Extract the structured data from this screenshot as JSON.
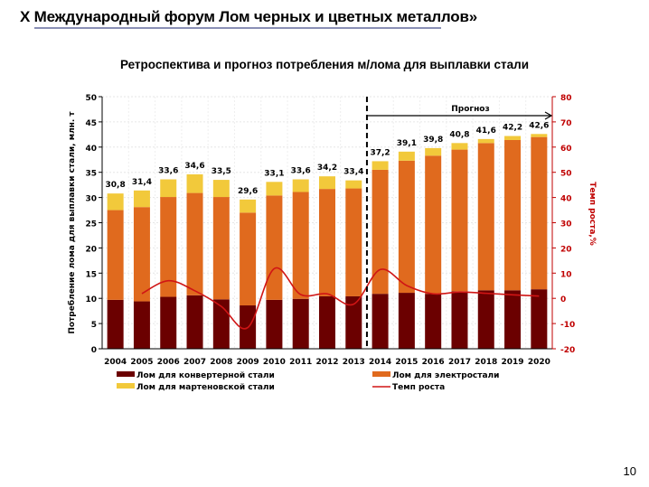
{
  "slide": {
    "title": "X Международный форум Лом черных и цветных металлов»",
    "page_number": "10"
  },
  "chart_data": {
    "type": "bar",
    "stacked": true,
    "title": "Ретроспектива и прогноз потребления м/лома для выплавки стали",
    "ylabel": "Потребление лома для выплавки стали, млн. т",
    "y2label": "Темп роста,%",
    "ylim": [
      0,
      50
    ],
    "y2lim": [
      -20,
      80
    ],
    "yticks": [
      "0",
      "5",
      "10",
      "15",
      "20",
      "25",
      "30",
      "35",
      "40",
      "45",
      "50"
    ],
    "y2ticks": [
      "-20",
      "-10",
      "0",
      "10",
      "20",
      "30",
      "40",
      "50",
      "60",
      "70",
      "80"
    ],
    "categories": [
      "2004",
      "2005",
      "2006",
      "2007",
      "2008",
      "2009",
      "2010",
      "2011",
      "2012",
      "2013",
      "2014",
      "2015",
      "2016",
      "2017",
      "2018",
      "2019",
      "2020"
    ],
    "forecast_label": "Прогноз",
    "forecast_start": "2014",
    "totals_labels": [
      "30,8",
      "31,4",
      "33,6",
      "34,6",
      "33,5",
      "29,6",
      "33,1",
      "33,6",
      "34,2",
      "33,4",
      "37,2",
      "39,1",
      "39,8",
      "40,8",
      "41,6",
      "42,2",
      "42,6"
    ],
    "series": [
      {
        "name": "Лом для конвертерной стали",
        "color": "#6b0000",
        "values": [
          9.7,
          9.4,
          10.3,
          10.6,
          9.8,
          8.6,
          9.7,
          9.9,
          10.4,
          10.4,
          10.9,
          11.1,
          10.9,
          11.4,
          11.6,
          11.6,
          11.8
        ]
      },
      {
        "name": "Лом для электростали",
        "color": "#e06a1e",
        "values": [
          17.8,
          18.7,
          19.8,
          20.3,
          20.3,
          18.4,
          20.7,
          21.2,
          21.3,
          21.4,
          24.6,
          26.2,
          27.4,
          28.1,
          29.2,
          29.8,
          30.2
        ]
      },
      {
        "name": "Лом для мартеновской стали",
        "color": "#f2c93b",
        "values": [
          3.3,
          3.3,
          3.5,
          3.7,
          3.4,
          2.6,
          2.7,
          2.5,
          2.5,
          1.6,
          1.7,
          1.8,
          1.5,
          1.3,
          0.8,
          0.8,
          0.6
        ]
      },
      {
        "name": "Темп роста",
        "type": "line",
        "axis": "right",
        "color": "#d01515",
        "values": [
          null,
          1.9,
          7.0,
          3.0,
          -3.2,
          -11.6,
          11.8,
          1.5,
          1.8,
          -2.3,
          11.4,
          5.1,
          1.8,
          2.5,
          2.0,
          1.4,
          0.9
        ]
      }
    ],
    "legend": "bottom",
    "grid": true
  }
}
